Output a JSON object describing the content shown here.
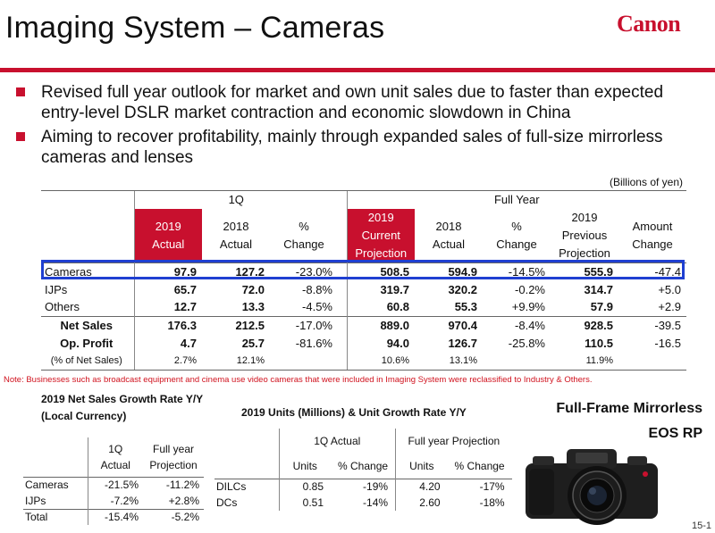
{
  "header": {
    "title": "Imaging System – Cameras",
    "logo": "Canon",
    "brand_color": "#c8102e"
  },
  "bullets": [
    "Revised full year outlook for market and own unit sales due to faster than expected entry-level DSLR market contraction and economic slowdown in China",
    "Aiming to recover profitability, mainly through expanded sales of full-size mirrorless cameras and lenses"
  ],
  "units_note": "(Billions of yen)",
  "main_table": {
    "group_1q": "1Q",
    "group_fy": "Full Year",
    "headers": {
      "q_2019": [
        "2019",
        "Actual"
      ],
      "q_2018": [
        "2018",
        "Actual"
      ],
      "q_pct": [
        "%",
        "Change"
      ],
      "fy_2019": [
        "2019",
        "Current",
        "Projection"
      ],
      "fy_2018": [
        "2018",
        "Actual"
      ],
      "fy_pct": [
        "%",
        "Change"
      ],
      "fy_prev": [
        "2019",
        "Previous",
        "Projection"
      ],
      "fy_amt": [
        "Amount",
        "Change"
      ]
    },
    "rows": [
      {
        "label": "Cameras",
        "q2019": "97.9",
        "q2018": "127.2",
        "qpct": "-23.0%",
        "fy2019": "508.5",
        "fy2018": "594.9",
        "fypct": "-14.5%",
        "fyprev": "555.9",
        "fyamt": "-47.4"
      },
      {
        "label": "IJPs",
        "q2019": "65.7",
        "q2018": "72.0",
        "qpct": "-8.8%",
        "fy2019": "319.7",
        "fy2018": "320.2",
        "fypct": "-0.2%",
        "fyprev": "314.7",
        "fyamt": "+5.0"
      },
      {
        "label": "Others",
        "q2019": "12.7",
        "q2018": "13.3",
        "qpct": "-4.5%",
        "fy2019": "60.8",
        "fy2018": "55.3",
        "fypct": "+9.9%",
        "fyprev": "57.9",
        "fyamt": "+2.9"
      },
      {
        "label": "Net Sales",
        "q2019": "176.3",
        "q2018": "212.5",
        "qpct": "-17.0%",
        "fy2019": "889.0",
        "fy2018": "970.4",
        "fypct": "-8.4%",
        "fyprev": "928.5",
        "fyamt": "-39.5"
      },
      {
        "label": "Op. Profit",
        "q2019": "4.7",
        "q2018": "25.7",
        "qpct": "-81.6%",
        "fy2019": "94.0",
        "fy2018": "126.7",
        "fypct": "-25.8%",
        "fyprev": "110.5",
        "fyamt": "-16.5"
      },
      {
        "label": "(% of Net Sales)",
        "q2019": "2.7%",
        "q2018": "12.1%",
        "qpct": "",
        "fy2019": "10.6%",
        "fy2018": "13.1%",
        "fypct": "",
        "fyprev": "11.9%",
        "fyamt": ""
      }
    ]
  },
  "footnote": "Note: Businesses such as broadcast equipment and cinema use video cameras that were included in Imaging System were reclassified to Industry & Others.",
  "growth": {
    "title_line1": "2019 Net Sales Growth Rate Y/Y",
    "title_line2": "(Local Currency)",
    "headers": {
      "q": [
        "1Q",
        "Actual"
      ],
      "fy": [
        "Full year",
        "Projection"
      ]
    },
    "rows": [
      {
        "label": "Cameras",
        "q": "-21.5%",
        "fy": "-11.2%"
      },
      {
        "label": "IJPs",
        "q": "-7.2%",
        "fy": "+2.8%"
      },
      {
        "label": "Total",
        "q": "-15.4%",
        "fy": "-5.2%"
      }
    ]
  },
  "units": {
    "title": "2019 Units (Millions) & Unit Growth Rate Y/Y",
    "group_q": "1Q Actual",
    "group_fy": "Full year Projection",
    "col_units": "Units",
    "col_pct": "% Change",
    "rows": [
      {
        "label": "DILCs",
        "q_units": "0.85",
        "q_pct": "-19%",
        "fy_units": "4.20",
        "fy_pct": "-17%"
      },
      {
        "label": "DCs",
        "q_units": "0.51",
        "q_pct": "-14%",
        "fy_units": "2.60",
        "fy_pct": "-18%"
      }
    ]
  },
  "product": {
    "line1": "Full-Frame Mirrorless",
    "line2": "EOS RP"
  },
  "page_number": "15-1"
}
